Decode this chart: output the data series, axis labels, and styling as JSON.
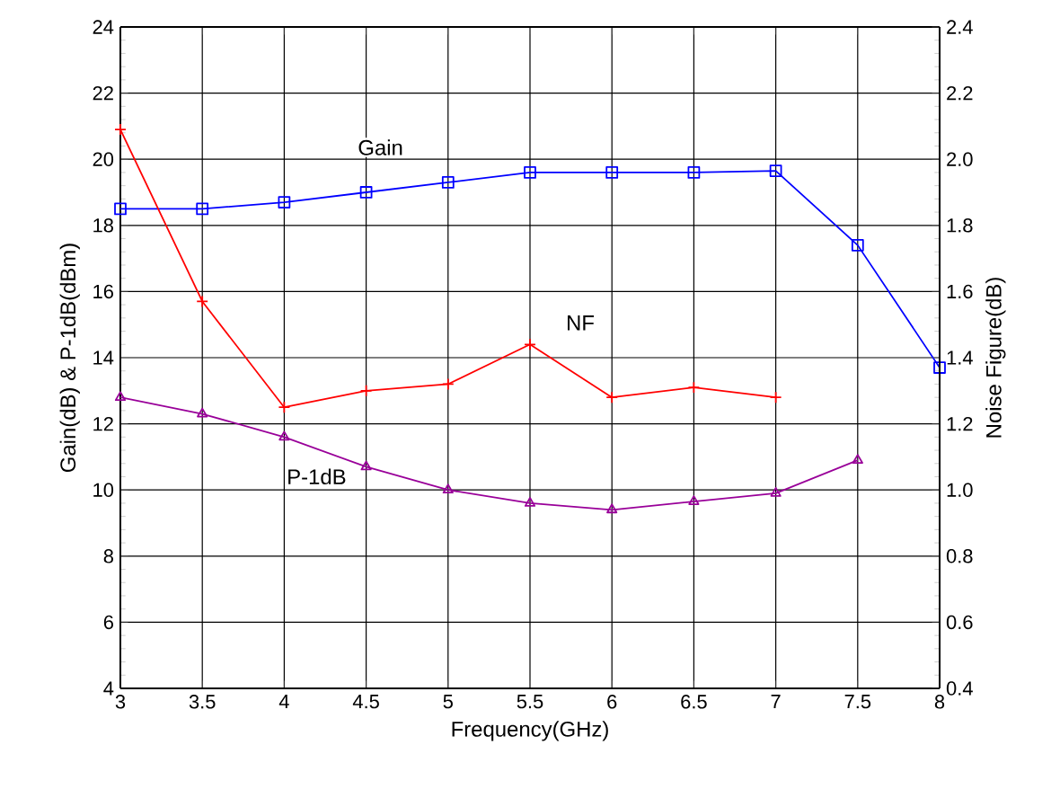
{
  "chart_data": {
    "type": "line",
    "xlabel": "Frequency(GHz)",
    "ylabel": "Gain(dB) & P-1dB(dBm)",
    "y2label": "Noise Figure(dB)",
    "x": [
      3,
      3.5,
      4,
      4.5,
      5,
      5.5,
      6,
      6.5,
      7,
      7.5,
      8
    ],
    "series": [
      {
        "name": "Gain",
        "color": "#0000ff",
        "marker": "square",
        "values": [
          18.5,
          18.5,
          18.7,
          19.0,
          19.3,
          19.6,
          19.6,
          19.6,
          19.65,
          17.4,
          13.7
        ]
      },
      {
        "name": "NF",
        "color": "#ff0000",
        "marker": "cross",
        "axis": "y2",
        "values": [
          2.09,
          1.57,
          1.25,
          1.3,
          1.32,
          1.44,
          1.28,
          1.31,
          1.28,
          null,
          null
        ]
      },
      {
        "name": "P-1dB",
        "color": "#990099",
        "marker": "triangle",
        "values": [
          12.8,
          12.3,
          11.6,
          10.7,
          10.0,
          9.6,
          9.4,
          9.65,
          9.9,
          10.9,
          null
        ]
      }
    ],
    "xlim": [
      3,
      8
    ],
    "xticks": [
      3,
      3.5,
      4,
      4.5,
      5,
      5.5,
      6,
      6.5,
      7,
      7.5,
      8
    ],
    "ylim": [
      4,
      24
    ],
    "yticks": [
      4,
      6,
      8,
      10,
      12,
      14,
      16,
      18,
      20,
      22,
      24
    ],
    "y2lim": [
      0.4,
      2.4
    ],
    "y2ticks": [
      {
        "value": 0.4,
        "label": "0.4"
      },
      {
        "value": 0.6,
        "label": "0.6"
      },
      {
        "value": 0.8,
        "label": "0.8"
      },
      {
        "value": 1.0,
        "label": "1.0"
      },
      {
        "value": 1.2,
        "label": "1.2"
      },
      {
        "value": 1.4,
        "label": "1.4"
      },
      {
        "value": 1.6,
        "label": "1.6"
      },
      {
        "value": 1.8,
        "label": "1.8"
      },
      {
        "value": 2.0,
        "label": "2.0"
      },
      {
        "value": 2.2,
        "label": "2.2"
      },
      {
        "value": 2.4,
        "label": "2.4"
      }
    ],
    "grid": true,
    "legend": false
  }
}
